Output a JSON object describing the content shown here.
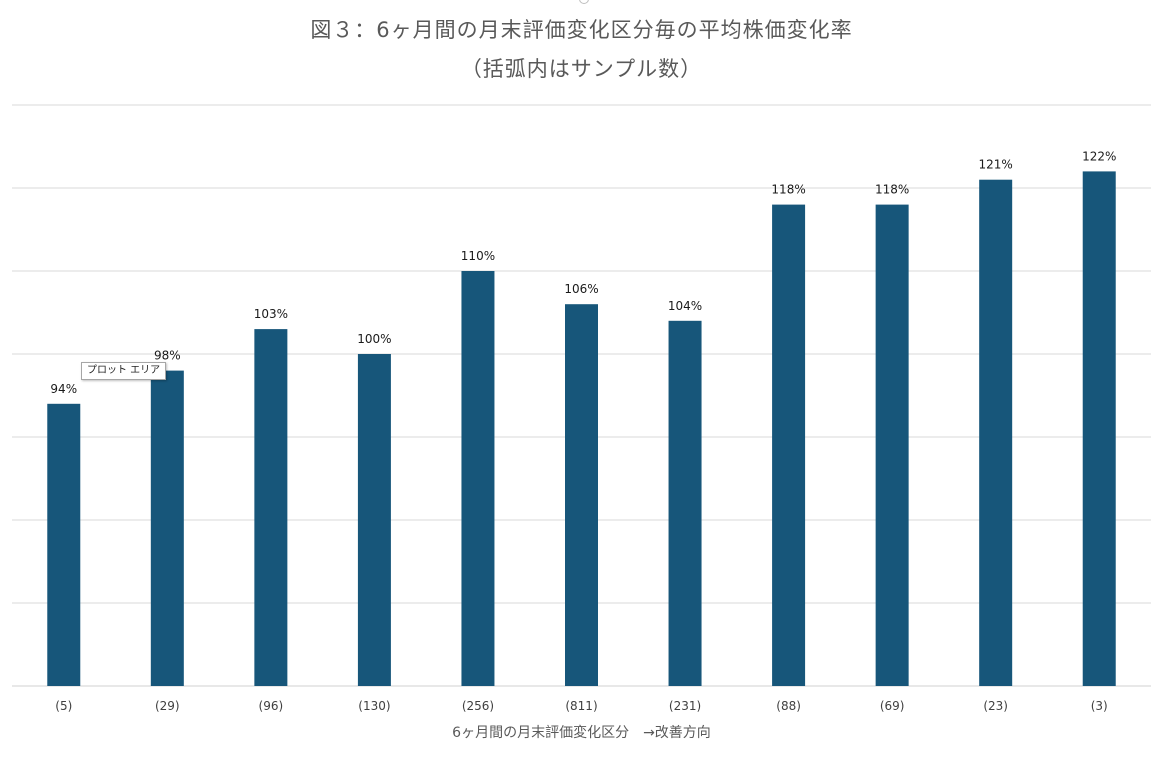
{
  "chart_data": {
    "type": "bar",
    "title": "図３：6ヶ月間の月末評価変化区分毎の平均株価変化率",
    "subtitle": "（括弧内はサンプル数）",
    "xlabel": "6ヶ月間の月末評価変化区分　→改善方向",
    "ylabel": "",
    "categories": [
      "(5)",
      "(29)",
      "(96)",
      "(130)",
      "(256)",
      "(811)",
      "(231)",
      "(88)",
      "(69)",
      "(23)",
      "(3)"
    ],
    "values": [
      94,
      98,
      103,
      100,
      110,
      106,
      104,
      118,
      118,
      121,
      122
    ],
    "data_labels": [
      "94%",
      "98%",
      "103%",
      "100%",
      "110%",
      "106%",
      "104%",
      "118%",
      "118%",
      "121%",
      "122%"
    ],
    "ylim": [
      60,
      130
    ],
    "grid": true,
    "axis_labels_shown": false,
    "bar_color": "#17567a",
    "grid_color": "#d9d9d9"
  },
  "tooltip": {
    "text": "プロット エリア"
  }
}
